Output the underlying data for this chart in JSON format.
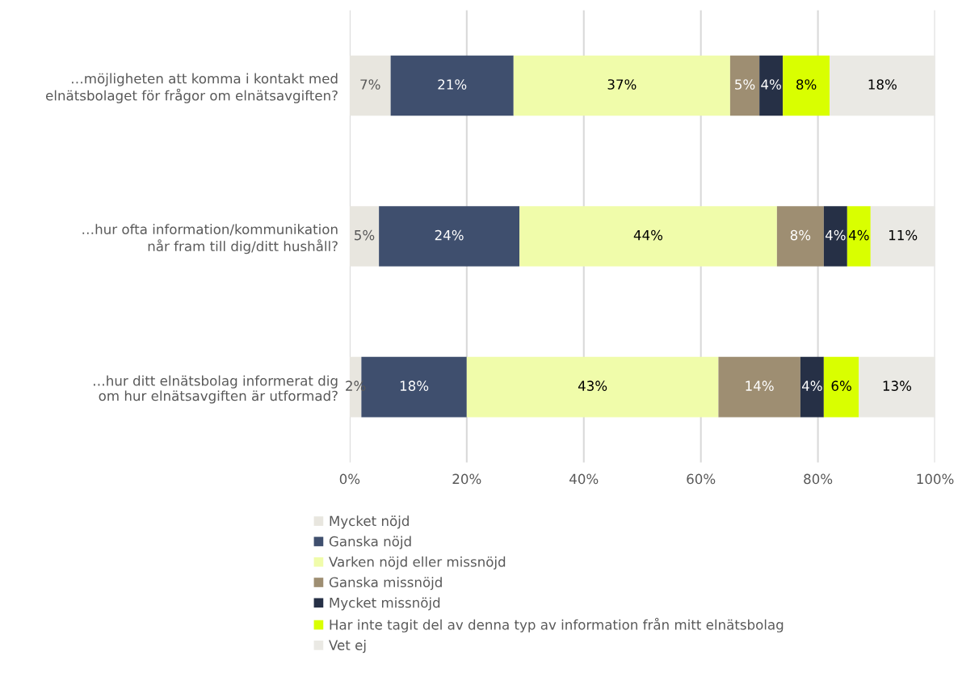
{
  "chart_data": {
    "type": "bar",
    "orientation": "horizontal",
    "stacked": true,
    "grid": "x",
    "legend": "bottom",
    "categories": [
      "…möjligheten att komma i kontakt med\nelnätsbolaget för frågor om elnätsavgiften?",
      "…hur ofta information/kommunikation\nnår fram till dig/ditt hushåll?",
      "…hur ditt elnätsbolag informerat dig\nom hur elnätsavgiften är utformad?"
    ],
    "xlim": [
      0,
      100
    ],
    "xticks": [
      {
        "value": 0,
        "label": "0%"
      },
      {
        "value": 20,
        "label": "20%"
      },
      {
        "value": 40,
        "label": "40%"
      },
      {
        "value": 60,
        "label": "60%"
      },
      {
        "value": 80,
        "label": "80%"
      },
      {
        "value": 100,
        "label": "100%"
      }
    ],
    "series": [
      {
        "name": "Mycket nöjd",
        "color": "#e8e6df",
        "values": [
          7,
          5,
          2
        ],
        "value_labels": [
          "7%",
          "5%",
          "2%"
        ]
      },
      {
        "name": "Ganska nöjd",
        "color": "#3f4f6e",
        "values": [
          21,
          24,
          18
        ],
        "value_labels": [
          "21%",
          "24%",
          "18%"
        ]
      },
      {
        "name": "Varken nöjd eller missnöjd",
        "color": "#f0fcaa",
        "values": [
          37,
          44,
          43
        ],
        "value_labels": [
          "37%",
          "44%",
          "43%"
        ]
      },
      {
        "name": "Ganska missnöjd",
        "color": "#9e8e72",
        "values": [
          5,
          8,
          14
        ],
        "value_labels": [
          "5%",
          "8%",
          "14%"
        ]
      },
      {
        "name": "Mycket missnöjd",
        "color": "#263046",
        "values": [
          4,
          4,
          4
        ],
        "value_labels": [
          "4%",
          "4%",
          "4%"
        ]
      },
      {
        "name": "Har inte tagit del av denna typ av information från mitt elnätsbolag",
        "color": "#d9ff00",
        "values": [
          8,
          4,
          6
        ],
        "value_labels": [
          "8%",
          "4%",
          "6%"
        ]
      },
      {
        "name": "Vet ej",
        "color": "#eae9e4",
        "values": [
          18,
          11,
          13
        ],
        "value_labels": [
          "18%",
          "11%",
          "13%"
        ]
      }
    ]
  }
}
